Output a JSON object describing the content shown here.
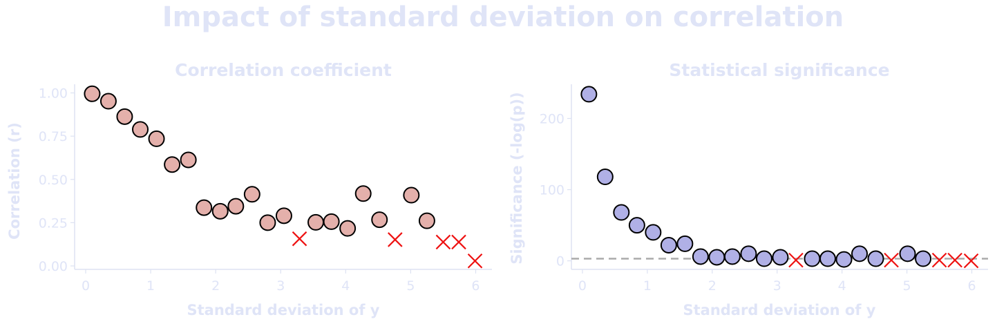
{
  "figure_title": "Impact of standard deviation on correlation",
  "chart_data": [
    {
      "type": "scatter",
      "title": "Correlation coefficient",
      "xlabel": "Standard deviation of y",
      "ylabel": "Correlation (r)",
      "xlim": [
        -0.17,
        6.25
      ],
      "ylim": [
        -0.02,
        1.05
      ],
      "xticks": [
        0,
        1,
        2,
        3,
        4,
        5,
        6
      ],
      "xtick_labels": [
        "0",
        "1",
        "2",
        "3",
        "4",
        "5",
        "6"
      ],
      "yticks": [
        0,
        0.25,
        0.5,
        0.75,
        1.0
      ],
      "ytick_labels": [
        "0.00",
        "0.25",
        "0.50",
        "0.75",
        "1.00"
      ],
      "marker_color": "#e4b0ab",
      "cross_color": "#ee1111",
      "series": [
        {
          "marker": "circle",
          "points": [
            [
              0.1,
              0.995
            ],
            [
              0.35,
              0.952
            ],
            [
              0.6,
              0.863
            ],
            [
              0.84,
              0.789
            ],
            [
              1.09,
              0.735
            ],
            [
              1.33,
              0.586
            ],
            [
              1.58,
              0.613
            ],
            [
              1.82,
              0.337
            ],
            [
              2.07,
              0.316
            ],
            [
              2.31,
              0.345
            ],
            [
              2.56,
              0.414
            ],
            [
              2.8,
              0.25
            ],
            [
              3.05,
              0.29
            ],
            [
              3.54,
              0.252
            ],
            [
              3.78,
              0.256
            ],
            [
              4.03,
              0.217
            ],
            [
              4.27,
              0.418
            ],
            [
              4.52,
              0.267
            ],
            [
              5.01,
              0.409
            ],
            [
              5.25,
              0.261
            ]
          ]
        },
        {
          "marker": "x",
          "points": [
            [
              3.29,
              0.157
            ],
            [
              4.76,
              0.152
            ],
            [
              5.5,
              0.138
            ],
            [
              5.74,
              0.138
            ],
            [
              5.99,
              0.029
            ]
          ]
        }
      ]
    },
    {
      "type": "scatter",
      "title": "Statistical significance",
      "xlabel": "Standard deviation of y",
      "ylabel": "Significance (-log(p))",
      "xlim": [
        -0.17,
        6.25
      ],
      "ylim": [
        -12,
        248
      ],
      "xticks": [
        0,
        1,
        2,
        3,
        4,
        5,
        6
      ],
      "xtick_labels": [
        "0",
        "1",
        "2",
        "3",
        "4",
        "5",
        "6"
      ],
      "yticks": [
        0,
        100,
        200
      ],
      "ytick_labels": [
        "0",
        "100",
        "200"
      ],
      "reference_line": 3,
      "reference_color": "#aaaaaa",
      "marker_color": "#b0b0e6",
      "cross_color": "#ee1111",
      "series": [
        {
          "marker": "circle",
          "points": [
            [
              0.1,
              234
            ],
            [
              0.35,
              118
            ],
            [
              0.6,
              68
            ],
            [
              0.84,
              50
            ],
            [
              1.09,
              40
            ],
            [
              1.33,
              22
            ],
            [
              1.58,
              24
            ],
            [
              1.82,
              6
            ],
            [
              2.07,
              5
            ],
            [
              2.31,
              6
            ],
            [
              2.56,
              10
            ],
            [
              2.8,
              3
            ],
            [
              3.05,
              5
            ],
            [
              3.54,
              3
            ],
            [
              3.78,
              3
            ],
            [
              4.03,
              2
            ],
            [
              4.27,
              10
            ],
            [
              4.52,
              3
            ],
            [
              5.01,
              10
            ],
            [
              5.25,
              3
            ]
          ]
        },
        {
          "marker": "x",
          "points": [
            [
              3.29,
              1
            ],
            [
              4.76,
              1
            ],
            [
              5.5,
              1
            ],
            [
              5.74,
              1
            ],
            [
              5.99,
              0
            ]
          ]
        }
      ]
    }
  ]
}
